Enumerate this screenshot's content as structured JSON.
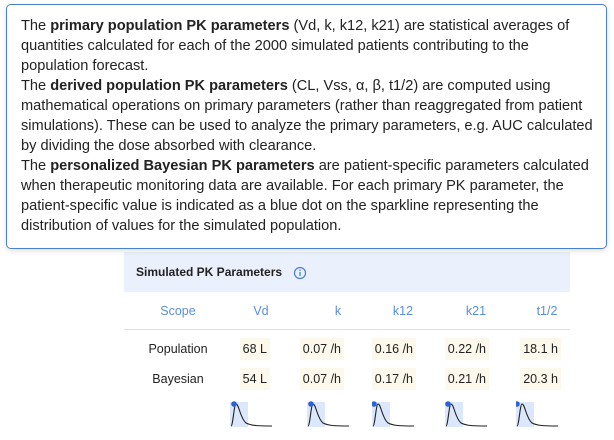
{
  "tooltip": {
    "paragraphs": [
      [
        {
          "text": "The ",
          "bold": false
        },
        {
          "text": "primary population PK parameters",
          "bold": true
        },
        {
          "text": " (Vd, k, k12, k21) are statistical averages of quantities calculated for each of the 2000 simulated patients contributing to the population forecast.",
          "bold": false
        }
      ],
      [
        {
          "text": "The ",
          "bold": false
        },
        {
          "text": "derived population PK parameters",
          "bold": true
        },
        {
          "text": " (CL, Vss, α, β, t1/2) are computed using mathematical operations on primary parameters (rather than reaggregated from patient simulations). These can be used to analyze the primary parameters, e.g. AUC calculated by dividing the dose absorbed with clearance.",
          "bold": false
        }
      ],
      [
        {
          "text": "The ",
          "bold": false
        },
        {
          "text": "personalized Bayesian PK parameters",
          "bold": true
        },
        {
          "text": " are patient-specific parameters calculated when therapeutic monitoring data are available. For each primary PK parameter, the patient-specific value is indicated as a blue dot on the sparkline representing the distribution of values for the simulated population.",
          "bold": false
        }
      ]
    ]
  },
  "panel": {
    "title": "Simulated PK Parameters",
    "table": {
      "header": [
        "Scope",
        "Vd",
        "k",
        "k12",
        "k21",
        "t1/2"
      ],
      "rows": [
        [
          "Population",
          "68 L",
          "0.07 /h",
          "0.16 /h",
          "0.22 /h",
          "18.1 h"
        ],
        [
          "Bayesian",
          "54 L",
          "0.07 /h",
          "0.17 /h",
          "0.21 /h",
          "20.3 h"
        ]
      ]
    }
  }
}
